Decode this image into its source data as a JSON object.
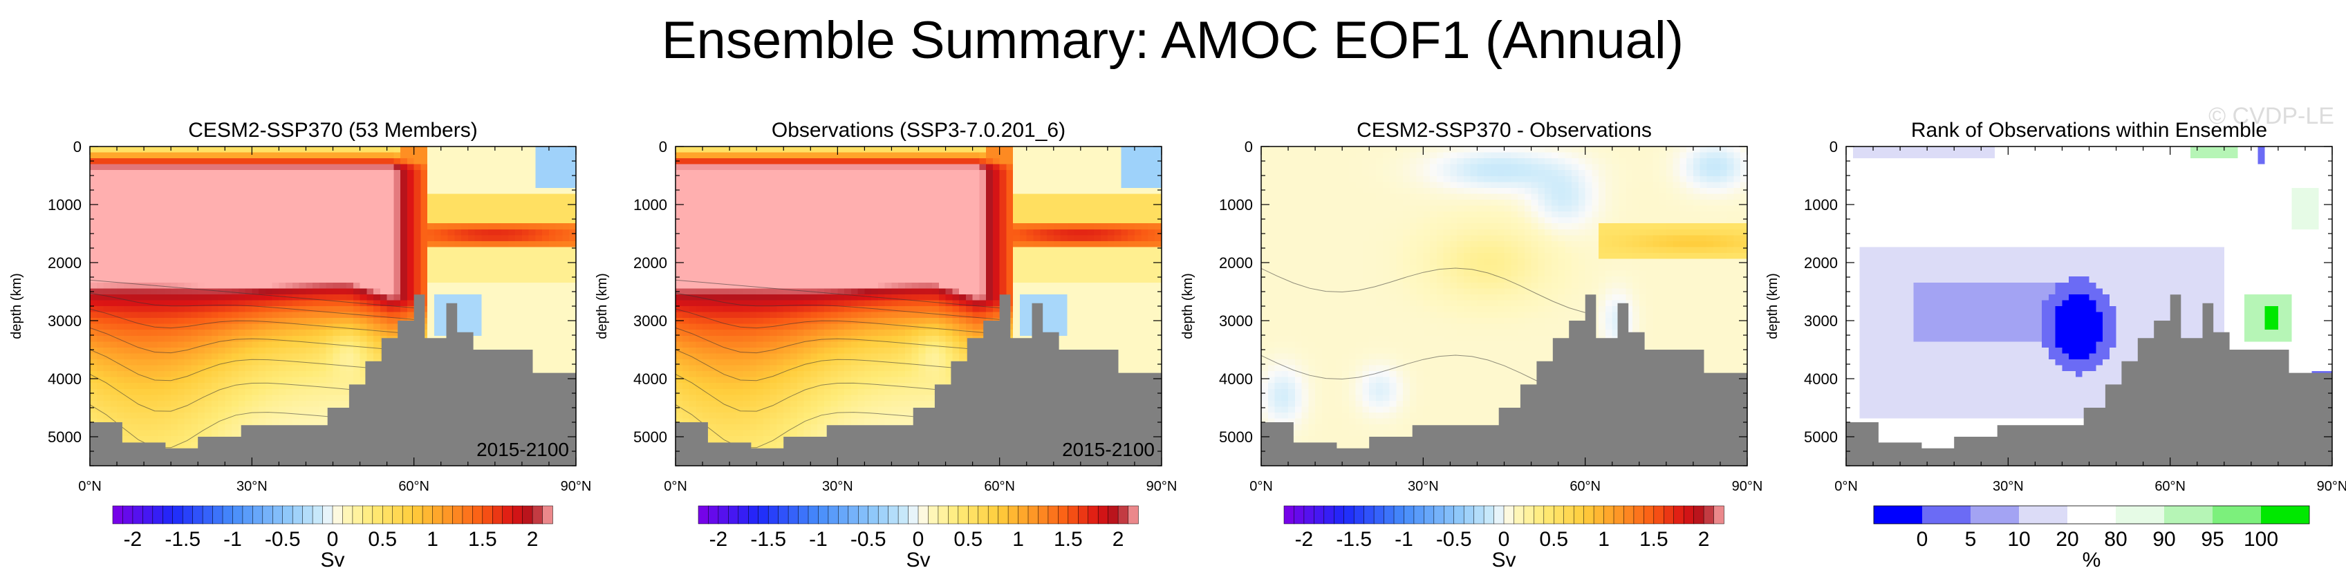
{
  "title": "Ensemble Summary: AMOC EOF1 (Annual)",
  "watermark": "© CVDP-LE",
  "panels": [
    {
      "title": "CESM2-SSP370 (53 Members)",
      "years": "2015-2100",
      "colorbar_key": "sv",
      "kind": "field"
    },
    {
      "title": "Observations (SSP3-7.0.201_6)",
      "years": "2015-2100",
      "colorbar_key": "sv",
      "kind": "field"
    },
    {
      "title": "CESM2-SSP370 - Observations",
      "years": "",
      "colorbar_key": "sv",
      "kind": "difference"
    },
    {
      "title": "Rank of Observations within Ensemble",
      "years": "",
      "colorbar_key": "pct",
      "kind": "rank"
    }
  ],
  "colorbars": {
    "sv": {
      "label": "Sv",
      "ticks": [
        "-2",
        "-1.5",
        "-1",
        "-0.5",
        "0",
        "0.5",
        "1",
        "1.5",
        "2"
      ],
      "tick_values": [
        -2,
        -1.5,
        -1,
        -0.5,
        0,
        0.5,
        1,
        1.5,
        2
      ],
      "range": [
        -2.2,
        2.2
      ]
    },
    "pct": {
      "label": "%",
      "ticks": [
        "0",
        "5",
        "10",
        "20",
        "80",
        "90",
        "95",
        "100"
      ],
      "tick_values": [
        0,
        5,
        10,
        20,
        80,
        90,
        95,
        100
      ],
      "colors": [
        "#0000ff",
        "#6b6bf5",
        "#a3a3f3",
        "#dcdcf7",
        "#ffffff",
        "#e6fbe6",
        "#b6f5b6",
        "#7cf07c",
        "#00e800"
      ]
    }
  },
  "chart_data": [
    {
      "type": "heatmap",
      "title": "CESM2-SSP370 (53 Members)",
      "xlabel": "",
      "ylabel": "depth (km)",
      "x_ticks": [
        "0°N",
        "30°N",
        "60°N",
        "90°N"
      ],
      "x_tick_values": [
        0,
        30,
        60,
        90
      ],
      "xlim": [
        0,
        90
      ],
      "y_ticks": [
        "0",
        "1000",
        "2000",
        "3000",
        "4000",
        "5000"
      ],
      "y_tick_values": [
        0,
        1000,
        2000,
        3000,
        4000,
        5000
      ],
      "ylim": [
        5500,
        0
      ],
      "max_value": 2.2,
      "annotation": "2015-2100",
      "units": "Sv"
    },
    {
      "type": "heatmap",
      "title": "Observations (SSP3-7.0.201_6)",
      "xlabel": "",
      "ylabel": "depth (km)",
      "x_ticks": [
        "0°N",
        "30°N",
        "60°N",
        "90°N"
      ],
      "x_tick_values": [
        0,
        30,
        60,
        90
      ],
      "xlim": [
        0,
        90
      ],
      "y_ticks": [
        "0",
        "1000",
        "2000",
        "3000",
        "4000",
        "5000"
      ],
      "y_tick_values": [
        0,
        1000,
        2000,
        3000,
        4000,
        5000
      ],
      "ylim": [
        5500,
        0
      ],
      "max_value": 2.2,
      "annotation": "2015-2100",
      "units": "Sv"
    },
    {
      "type": "heatmap",
      "title": "CESM2-SSP370 - Observations",
      "xlabel": "",
      "ylabel": "depth (km)",
      "x_ticks": [
        "0°N",
        "30°N",
        "60°N",
        "90°N"
      ],
      "x_tick_values": [
        0,
        30,
        60,
        90
      ],
      "xlim": [
        0,
        90
      ],
      "y_ticks": [
        "0",
        "1000",
        "2000",
        "3000",
        "4000",
        "5000"
      ],
      "y_tick_values": [
        0,
        1000,
        2000,
        3000,
        4000,
        5000
      ],
      "ylim": [
        5500,
        0
      ],
      "value_range": [
        -0.3,
        0.4
      ],
      "units": "Sv"
    },
    {
      "type": "heatmap",
      "title": "Rank of Observations within Ensemble",
      "xlabel": "",
      "ylabel": "depth (km)",
      "x_ticks": [
        "0°N",
        "30°N",
        "60°N",
        "90°N"
      ],
      "x_tick_values": [
        0,
        30,
        60,
        90
      ],
      "xlim": [
        0,
        90
      ],
      "y_ticks": [
        "0",
        "1000",
        "2000",
        "3000",
        "4000",
        "5000"
      ],
      "y_tick_values": [
        0,
        1000,
        2000,
        3000,
        4000,
        5000
      ],
      "ylim": [
        5500,
        0
      ],
      "units": "%"
    }
  ]
}
